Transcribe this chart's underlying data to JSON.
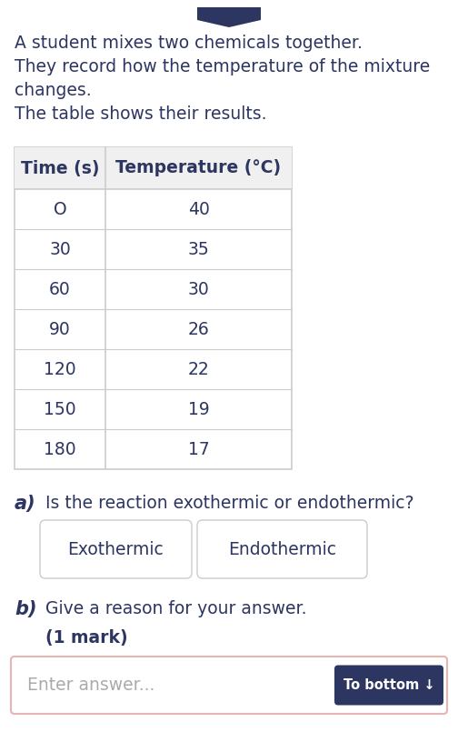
{
  "intro_lines": [
    "A student mixes two chemicals together.",
    "They record how the temperature of the mixture",
    "changes.",
    "The table shows their results."
  ],
  "table_headers": [
    "Time (s)",
    "Temperature (°C)"
  ],
  "table_rows": [
    [
      "O",
      "40"
    ],
    [
      "30",
      "35"
    ],
    [
      "60",
      "30"
    ],
    [
      "90",
      "26"
    ],
    [
      "120",
      "22"
    ],
    [
      "150",
      "19"
    ],
    [
      "180",
      "17"
    ]
  ],
  "question_a_label": "a)",
  "question_a_text": "Is the reaction exothermic or endothermic?",
  "button1": "Exothermic",
  "button2": "Endothermic",
  "question_b_label": "b)",
  "question_b_text": "Give a reason for your answer.",
  "mark_text": "(1 mark)",
  "placeholder_text": "Enter answer...",
  "bottom_button_text": "To bottom ↓",
  "bg_color": "#ffffff",
  "text_color": "#2d3561",
  "table_border_color": "#cccccc",
  "table_line_color": "#cccccc",
  "table_header_bg": "#f0f0f0",
  "button_border_color": "#cccccc",
  "bottom_btn_color": "#2d3561",
  "input_border_color": "#e8b4b4",
  "placeholder_color": "#aaaaaa",
  "intro_fontsize": 13.5,
  "table_header_fontsize": 13.5,
  "table_body_fontsize": 13.5,
  "question_fontsize": 13.5,
  "bold_label_fontsize": 15
}
